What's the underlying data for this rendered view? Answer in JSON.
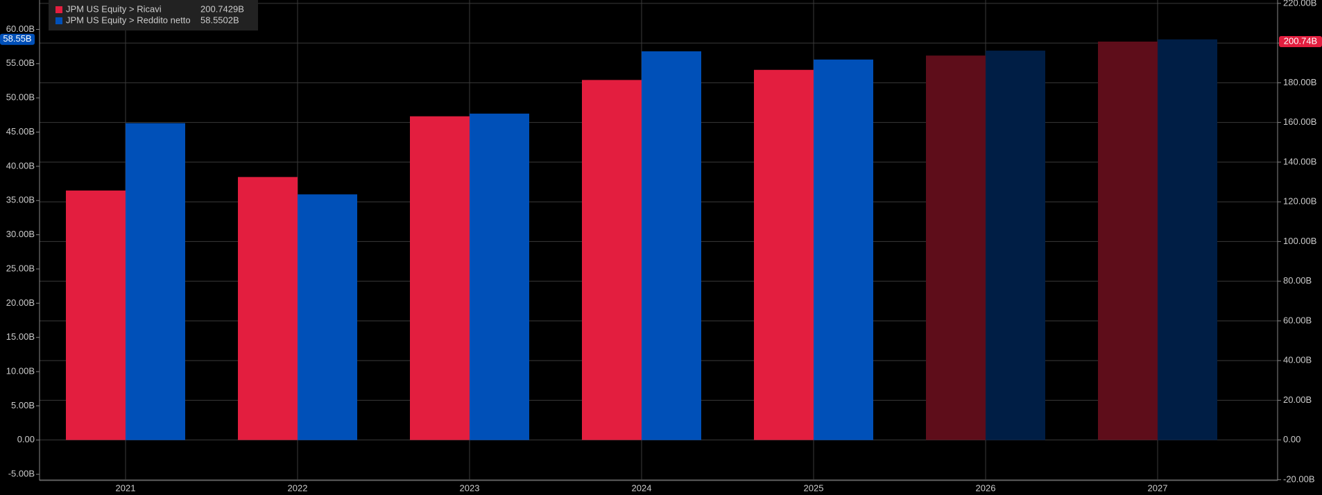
{
  "chart_data": {
    "type": "bar",
    "categories": [
      "2021",
      "2022",
      "2023",
      "2024",
      "2025",
      "2026",
      "2027"
    ],
    "series": [
      {
        "name": "JPM US Equity > Ricavi",
        "legend_value": "200.7429B",
        "badge": "200.74B",
        "color": "#e31e3f",
        "axis": "y2",
        "colors": [
          "#e31e3f",
          "#e31e3f",
          "#e31e3f",
          "#e31e3f",
          "#e31e3f",
          "#5e0d1a",
          "#5e0d1a"
        ],
        "values": [
          125.7,
          132.5,
          163.1,
          181.4,
          186.5,
          193.7,
          200.7429
        ]
      },
      {
        "name": "JPM US Equity > Reddito netto",
        "legend_value": "58.5502B",
        "badge": "58.55B",
        "color": "#0050b8",
        "colors": [
          "#0050b8",
          "#0050b8",
          "#0050b8",
          "#0050b8",
          "#0050b8",
          "#001e45",
          "#001e45"
        ],
        "values": [
          46.3,
          35.9,
          47.7,
          56.8,
          55.6,
          56.9,
          58.5502
        ]
      }
    ],
    "ylim": [
      -5.9,
      64.3
    ],
    "yticks": [
      {
        "value": -5,
        "label": "-5.00B"
      },
      {
        "value": 0,
        "label": "0.00"
      },
      {
        "value": 5,
        "label": "5.00B"
      },
      {
        "value": 10,
        "label": "10.00B"
      },
      {
        "value": 15,
        "label": "15.00B"
      },
      {
        "value": 20,
        "label": "20.00B"
      },
      {
        "value": 25,
        "label": "25.00B"
      },
      {
        "value": 30,
        "label": "30.00B"
      },
      {
        "value": 35,
        "label": "35.00B"
      },
      {
        "value": 40,
        "label": "40.00B"
      },
      {
        "value": 45,
        "label": "45.00B"
      },
      {
        "value": 50,
        "label": "50.00B"
      },
      {
        "value": 55,
        "label": "55.00B"
      },
      {
        "value": 60,
        "label": "60.00B"
      }
    ],
    "y2lim": [
      -20.4,
      221.7
    ],
    "y2ticks": [
      {
        "value": -20,
        "label": "-20.00B"
      },
      {
        "value": 0,
        "label": "0.00"
      },
      {
        "value": 20,
        "label": "20.00B"
      },
      {
        "value": 40,
        "label": "40.00B"
      },
      {
        "value": 60,
        "label": "60.00B"
      },
      {
        "value": 80,
        "label": "80.00B"
      },
      {
        "value": 100,
        "label": "100.00B"
      },
      {
        "value": 120,
        "label": "120.00B"
      },
      {
        "value": 140,
        "label": "140.00B"
      },
      {
        "value": 160,
        "label": "160.00B"
      },
      {
        "value": 180,
        "label": "180.00B"
      },
      {
        "value": 200,
        "label": "200.00B"
      },
      {
        "value": 220,
        "label": "220.00B"
      }
    ],
    "grid": true
  }
}
